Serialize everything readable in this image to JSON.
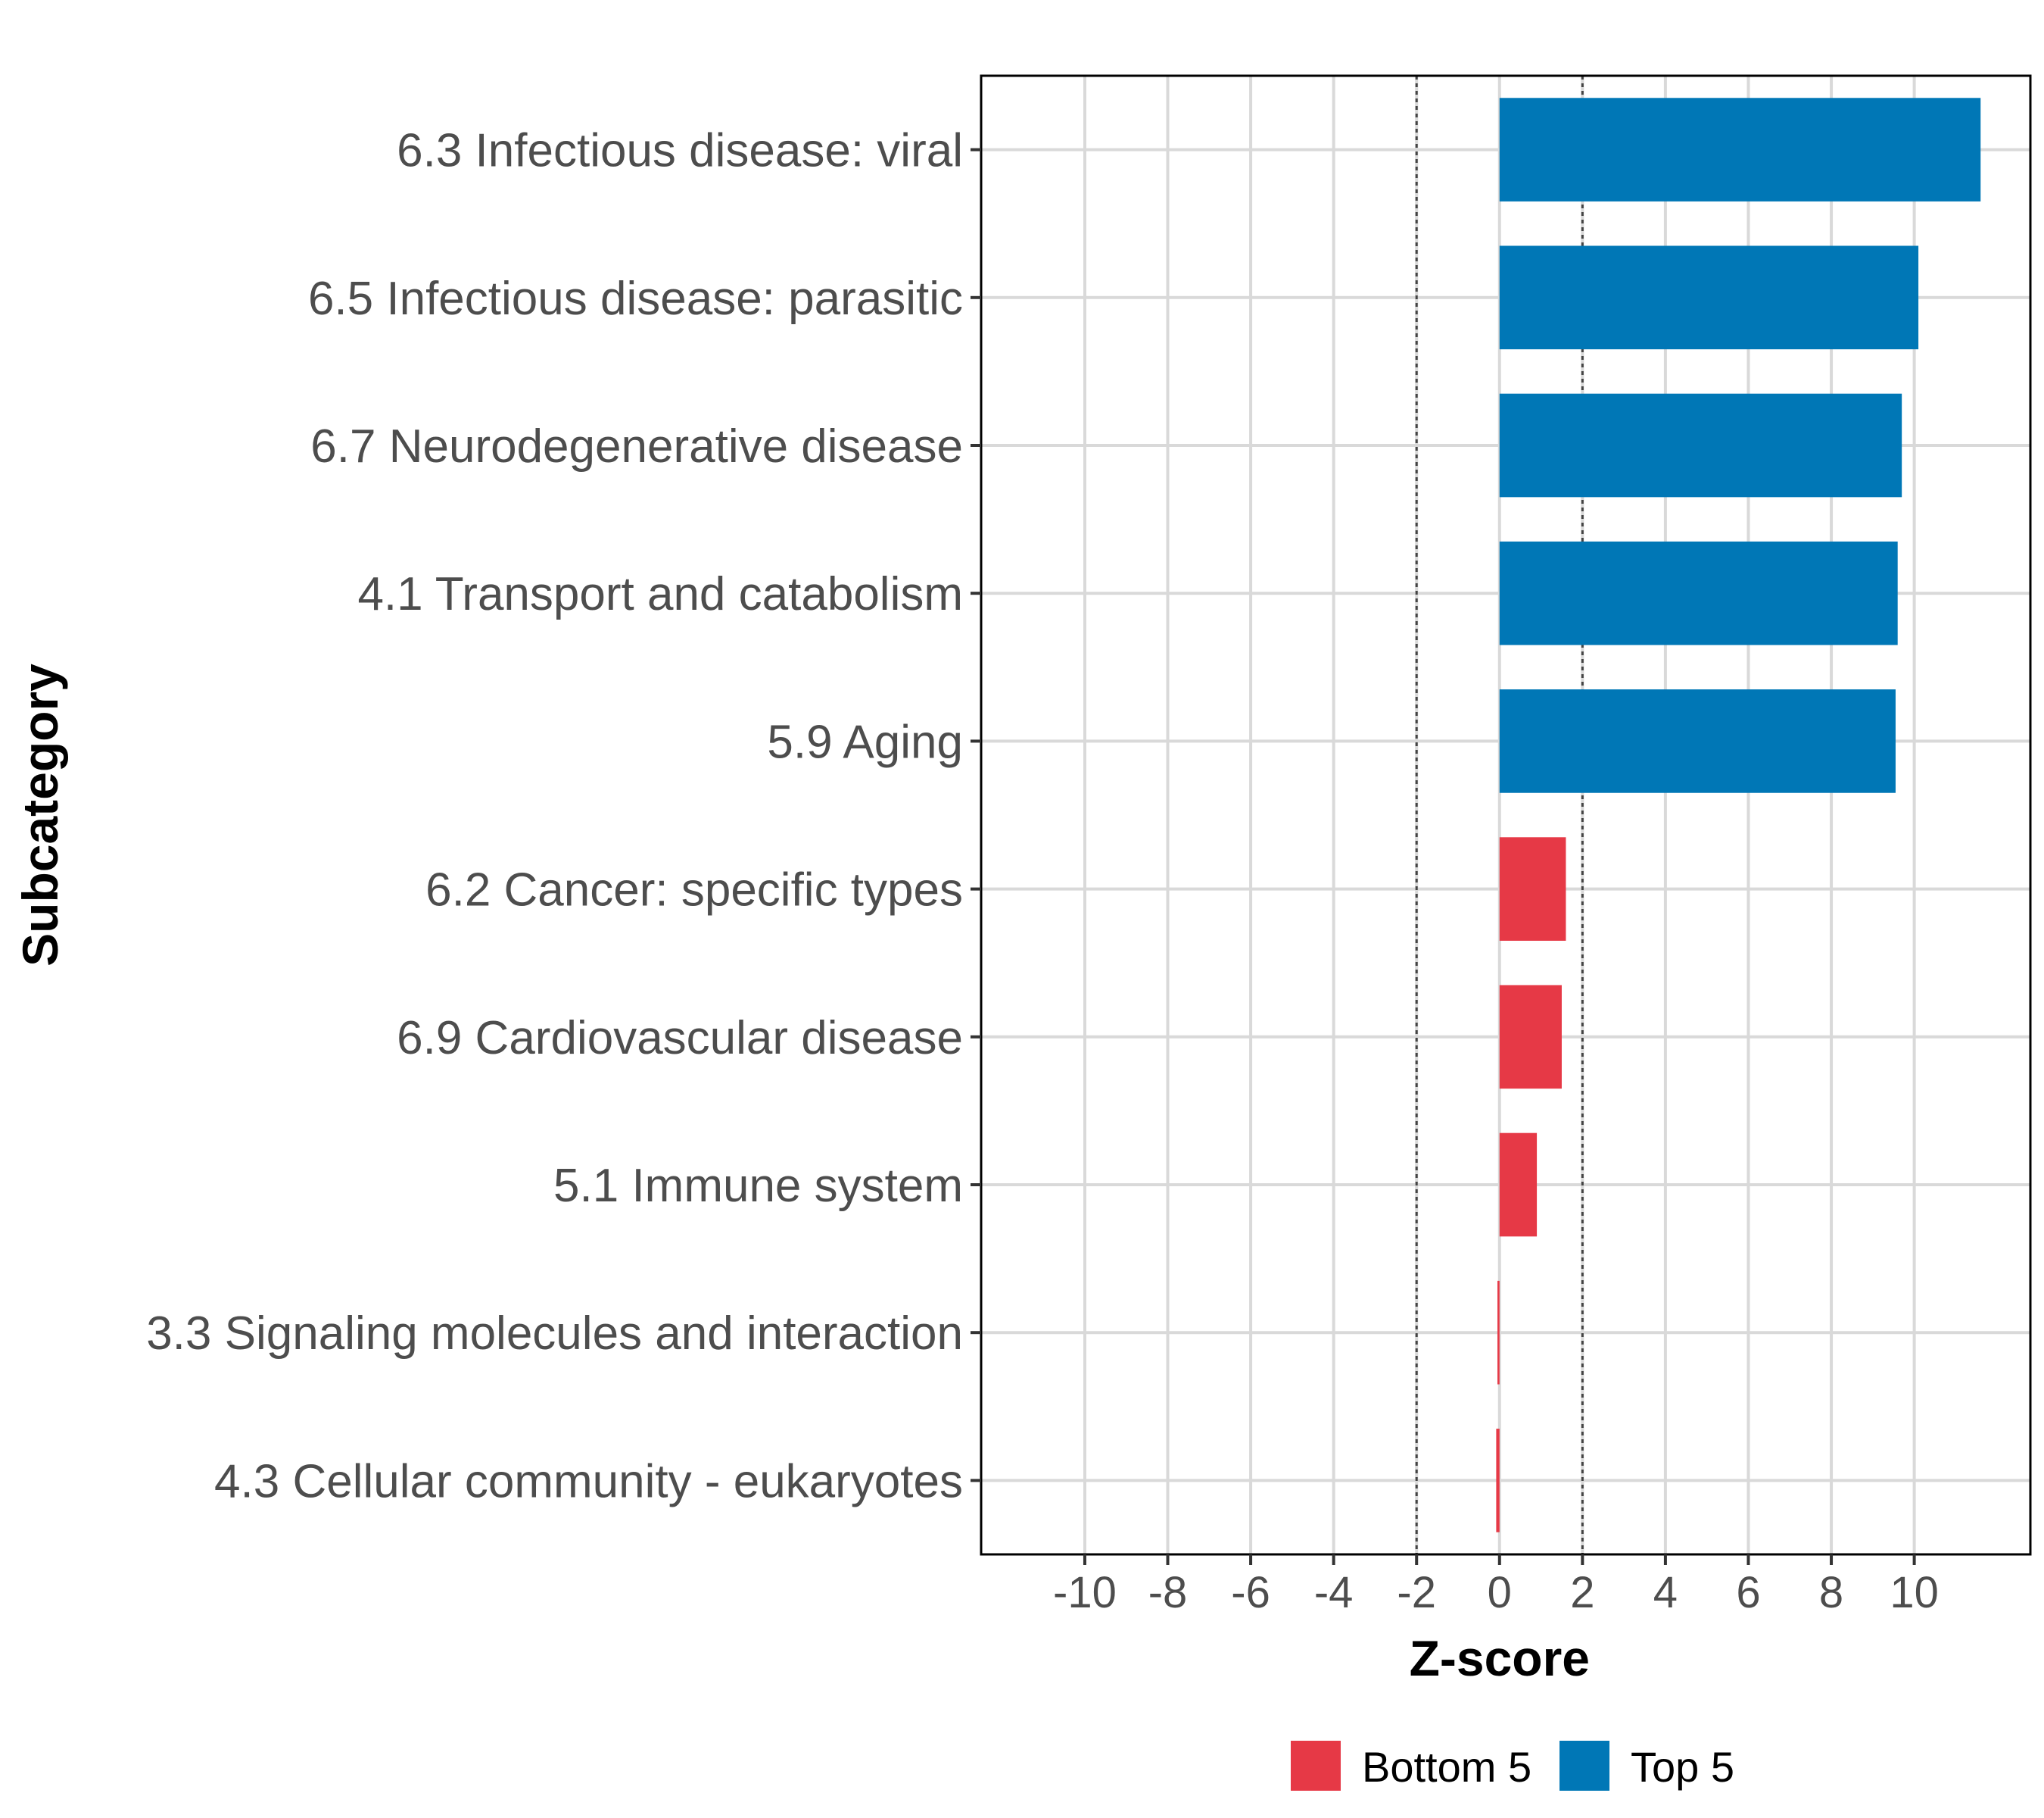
{
  "chart_data": {
    "type": "bar",
    "orientation": "horizontal",
    "xlabel": "Z-score",
    "ylabel": "Subcategory",
    "xlim": [
      -12.5,
      12.8
    ],
    "xticks": [
      -10,
      -8,
      -6,
      -4,
      -2,
      0,
      2,
      4,
      6,
      8,
      10
    ],
    "xtick_labels": [
      "-10",
      "-8",
      "-6",
      "-4",
      "-2",
      "0",
      "2",
      "4",
      "6",
      "8",
      "10"
    ],
    "grid": true,
    "reference_lines": [
      -2,
      2
    ],
    "legend_position": "bottom",
    "series": [
      {
        "name": "Bottom 5",
        "color": "#e63946"
      },
      {
        "name": "Top 5",
        "color": "#0077b6"
      }
    ],
    "categories": [
      "6.3 Infectious disease: viral",
      "6.5 Infectious disease: parasitic",
      "6.7 Neurodegenerative disease",
      "4.1 Transport and catabolism",
      "5.9 Aging",
      "6.2 Cancer: specific types",
      "6.9 Cardiovascular disease",
      "5.1 Immune system",
      "3.3 Signaling molecules and interaction",
      "4.3 Cellular community - eukaryotes"
    ],
    "values": [
      11.6,
      10.1,
      9.7,
      9.6,
      9.55,
      1.6,
      1.5,
      0.9,
      -0.05,
      -0.08
    ],
    "groups": [
      "Top 5",
      "Top 5",
      "Top 5",
      "Top 5",
      "Top 5",
      "Bottom 5",
      "Bottom 5",
      "Bottom 5",
      "Bottom 5",
      "Bottom 5"
    ]
  }
}
